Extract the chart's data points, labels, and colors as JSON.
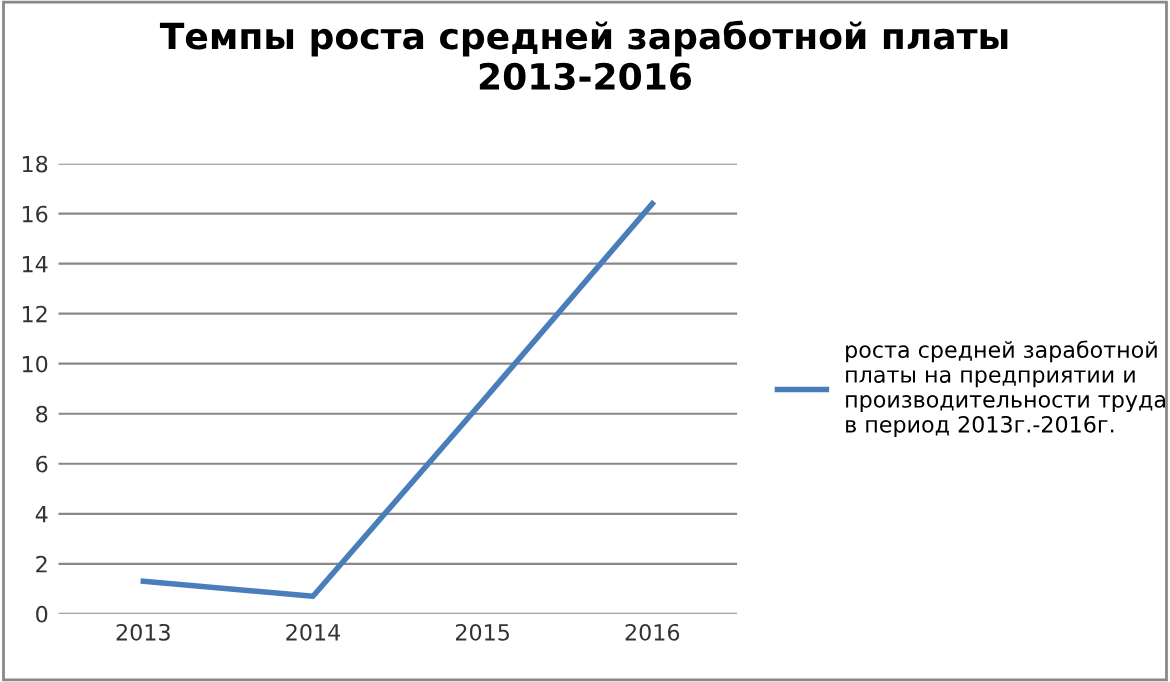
{
  "chart_data": {
    "type": "line",
    "title": "Темпы роста средней заработной платы\n2013-2016",
    "categories": [
      "2013",
      "2014",
      "2015",
      "2016"
    ],
    "series": [
      {
        "name": "роста средней заработной\nплаты на предприятии и\nпроизводительности труда\nв период 2013г.-2016г.",
        "color": "#4a7ebb",
        "values": [
          1.3,
          0.7,
          8.5,
          16.4
        ]
      }
    ],
    "ylim": [
      0,
      18
    ],
    "yticks": [
      0,
      2,
      4,
      6,
      8,
      10,
      12,
      14,
      16,
      18
    ],
    "grid": "y",
    "legend": "right",
    "marker": "none",
    "line_style": "solid"
  }
}
